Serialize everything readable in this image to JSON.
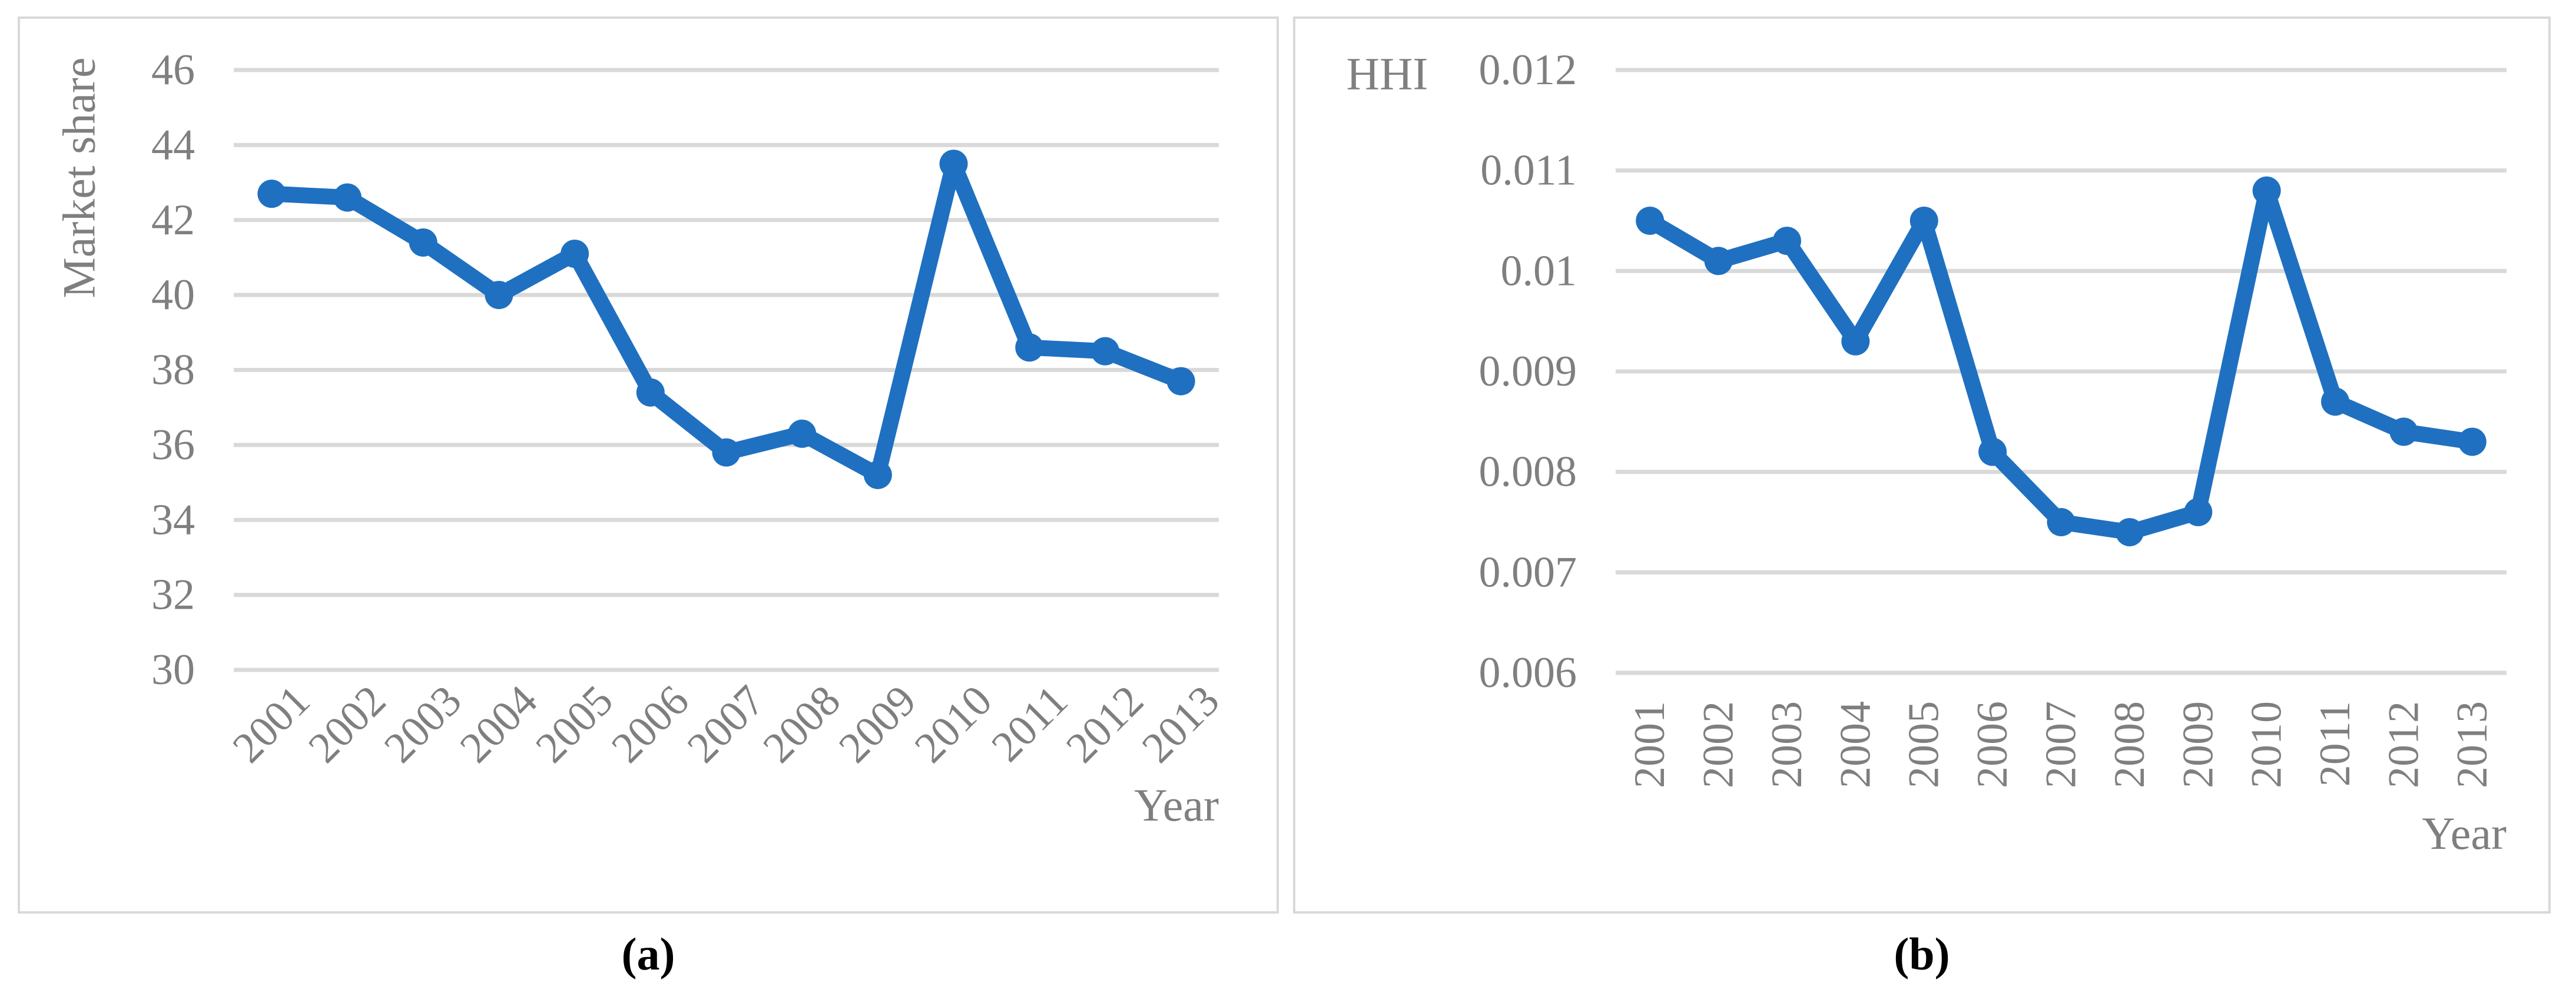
{
  "figure": {
    "background": "#ffffff",
    "panels": [
      {
        "caption": "(a)",
        "y_axis_title": "Market share",
        "x_axis_title": "Year"
      },
      {
        "caption": "(b)",
        "y_axis_title": "HHI",
        "x_axis_title": "Year"
      }
    ]
  },
  "colors": {
    "line": "#1F70C1",
    "grid": "#D9D9D9",
    "axis_text": "#7F7F7F",
    "panel_border": "#D9D9D9",
    "caption_text": "#000000"
  },
  "chart_data": [
    {
      "type": "line",
      "title": "",
      "ylabel": "Market share",
      "xlabel": "Year",
      "categories": [
        "2001",
        "2002",
        "2003",
        "2004",
        "2005",
        "2006",
        "2007",
        "2008",
        "2009",
        "2010",
        "2011",
        "2012",
        "2013"
      ],
      "values": [
        42.7,
        42.6,
        41.4,
        40.0,
        41.1,
        37.4,
        35.8,
        36.3,
        35.2,
        43.5,
        38.6,
        38.5,
        37.7
      ],
      "ylim": [
        30,
        46
      ],
      "yticks": [
        {
          "value": 46,
          "label": "46"
        },
        {
          "value": 44,
          "label": "44"
        },
        {
          "value": 42,
          "label": "42"
        },
        {
          "value": 40,
          "label": "40"
        },
        {
          "value": 38,
          "label": "38"
        },
        {
          "value": 36,
          "label": "36"
        },
        {
          "value": 34,
          "label": "34"
        },
        {
          "value": 32,
          "label": "32"
        },
        {
          "value": 30,
          "label": "30"
        }
      ],
      "grid": true,
      "legend": "none",
      "marker": "circle",
      "x_tick_rotation_deg": 45
    },
    {
      "type": "line",
      "title": "",
      "ylabel": "HHI",
      "xlabel": "Year",
      "categories": [
        "2001",
        "2002",
        "2003",
        "2004",
        "2005",
        "2006",
        "2007",
        "2008",
        "2009",
        "2010",
        "2011",
        "2012",
        "2013"
      ],
      "values": [
        0.0105,
        0.0101,
        0.0103,
        0.0093,
        0.0105,
        0.0082,
        0.0075,
        0.0074,
        0.0076,
        0.0108,
        0.0087,
        0.0084,
        0.0083
      ],
      "ylim": [
        0.006,
        0.012
      ],
      "yticks": [
        {
          "value": 0.012,
          "label": "0.012"
        },
        {
          "value": 0.011,
          "label": "0.011"
        },
        {
          "value": 0.01,
          "label": "0.01"
        },
        {
          "value": 0.009,
          "label": "0.009"
        },
        {
          "value": 0.008,
          "label": "0.008"
        },
        {
          "value": 0.007,
          "label": "0.007"
        },
        {
          "value": 0.006,
          "label": "0.006"
        }
      ],
      "grid": true,
      "legend": "none",
      "marker": "circle",
      "x_tick_rotation_deg": 90
    }
  ]
}
